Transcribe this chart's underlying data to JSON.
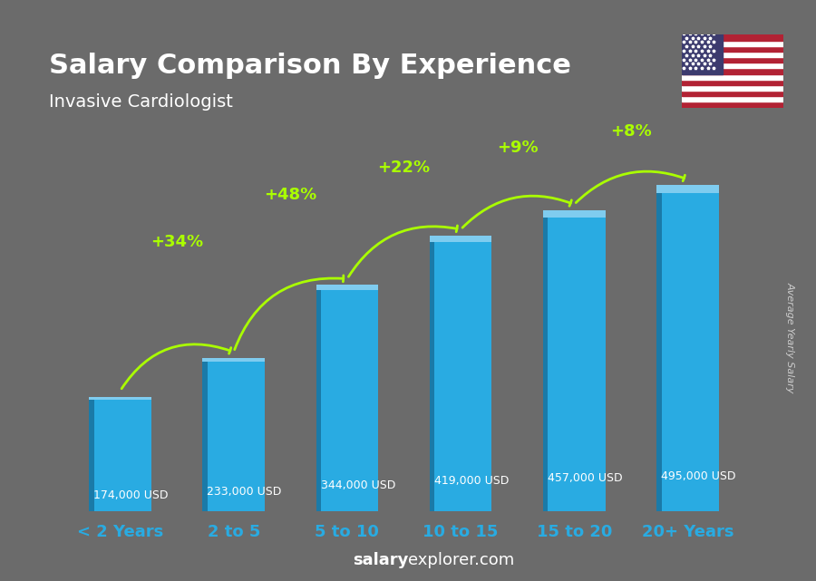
{
  "title": "Salary Comparison By Experience",
  "subtitle": "Invasive Cardiologist",
  "categories": [
    "< 2 Years",
    "2 to 5",
    "5 to 10",
    "10 to 15",
    "15 to 20",
    "20+ Years"
  ],
  "values": [
    174000,
    233000,
    344000,
    419000,
    457000,
    495000
  ],
  "value_labels": [
    "174,000 USD",
    "233,000 USD",
    "344,000 USD",
    "419,000 USD",
    "457,000 USD",
    "495,000 USD"
  ],
  "pct_labels": [
    "+34%",
    "+48%",
    "+22%",
    "+9%",
    "+8%"
  ],
  "bar_color_main": "#29ABE2",
  "bar_color_light": "#7FCCEF",
  "bar_color_dark": "#1A7AA8",
  "background_color": "#6B6B6B",
  "title_color": "#FFFFFF",
  "subtitle_color": "#FFFFFF",
  "xlabel_color": "#29ABE2",
  "ylabel_text": "Average Yearly Salary",
  "ylabel_color": "#CCCCCC",
  "value_label_color": "#FFFFFF",
  "pct_color": "#AAFF00",
  "arrow_color": "#AAFF00",
  "watermark_salary": "salary",
  "watermark_rest": "explorer.com",
  "ylim": [
    0,
    600000
  ]
}
